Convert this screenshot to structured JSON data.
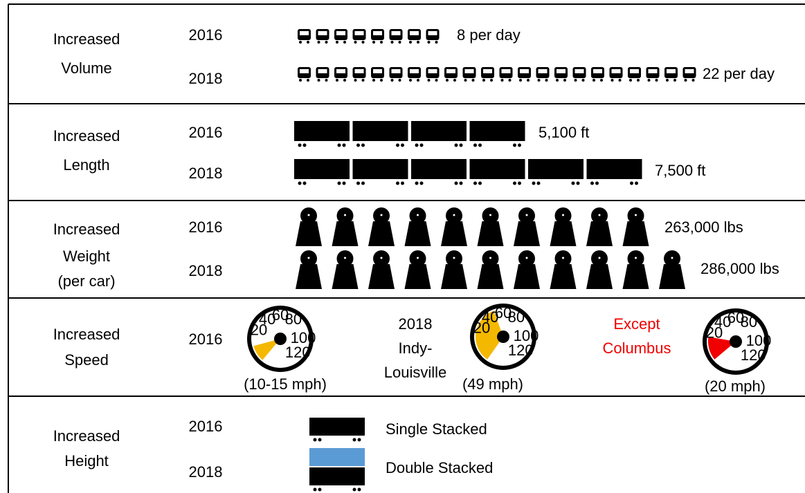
{
  "rows": [
    {
      "label": [
        "Increased",
        "Volume"
      ],
      "years": [
        "2016",
        "2018"
      ],
      "values": [
        "8 per day",
        "22 per day"
      ]
    },
    {
      "label": [
        "Increased",
        "Length"
      ],
      "years": [
        "2016",
        "2018"
      ],
      "values": [
        "5,100 ft",
        "7,500 ft"
      ]
    },
    {
      "label": [
        "Increased",
        "Weight"
      ],
      "note": "(per car)",
      "years": [
        "2016",
        "2018"
      ],
      "values": [
        "263,000 lbs",
        "286,000 lbs"
      ]
    },
    {
      "label": [
        "Increased",
        "Speed"
      ],
      "years": [
        "2016"
      ],
      "route": [
        "2018",
        "Indy-",
        "Louisville"
      ],
      "exception": [
        "Except",
        "Columbus"
      ],
      "captions": [
        "(10-15 mph)",
        "(49 mph)",
        "(20 mph)"
      ],
      "gauge_ticks": [
        20,
        40,
        60,
        80,
        100,
        120
      ]
    },
    {
      "label": [
        "Increased",
        "Height"
      ],
      "years": [
        "2016",
        "2018"
      ],
      "values": [
        "Single Stacked",
        "Double Stacked"
      ]
    }
  ]
}
